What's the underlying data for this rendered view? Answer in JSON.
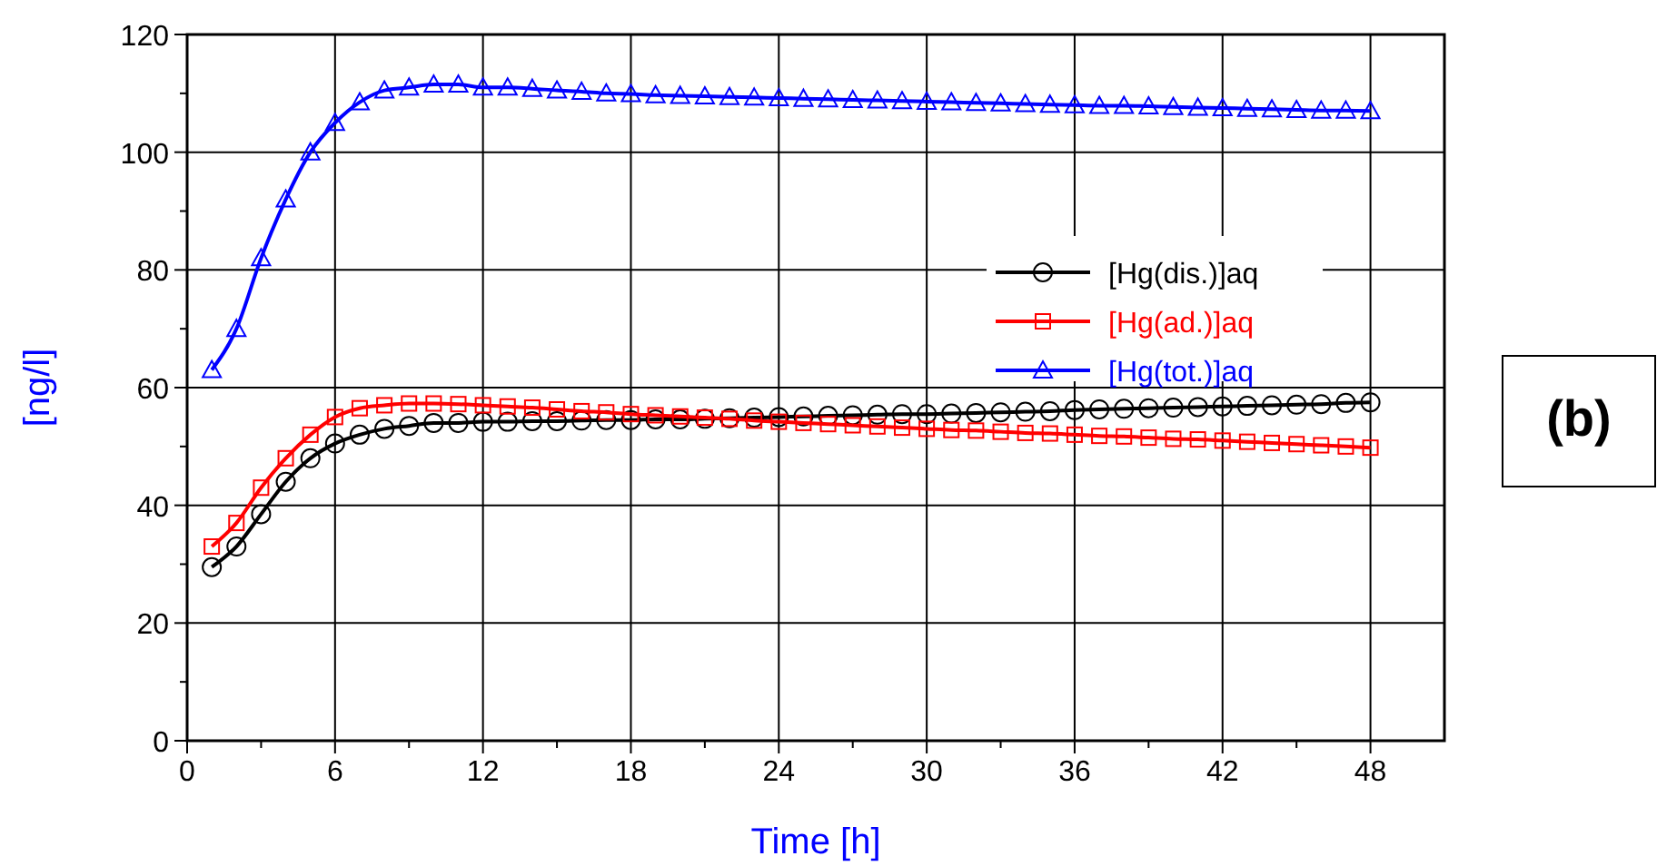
{
  "chart_data": {
    "type": "line",
    "xlabel": "Time [h]",
    "ylabel": "[ng/l]",
    "annotations": [
      "(b)"
    ],
    "x": [
      1,
      2,
      3,
      4,
      5,
      6,
      7,
      8,
      9,
      10,
      11,
      12,
      13,
      14,
      15,
      16,
      17,
      18,
      19,
      20,
      21,
      22,
      23,
      24,
      25,
      26,
      27,
      28,
      29,
      30,
      31,
      32,
      33,
      34,
      35,
      36,
      37,
      38,
      39,
      40,
      41,
      42,
      43,
      44,
      45,
      46,
      47,
      48
    ],
    "xlim": [
      0,
      51
    ],
    "xticks": [
      0,
      {
        "value": 3,
        "label": null
      },
      6,
      {
        "value": 9,
        "label": null
      },
      12,
      {
        "value": 15,
        "label": null
      },
      18,
      {
        "value": 21,
        "label": null
      },
      24,
      {
        "value": 27,
        "label": null
      },
      30,
      {
        "value": 33,
        "label": null
      },
      36,
      {
        "value": 39,
        "label": null
      },
      42,
      {
        "value": 45,
        "label": null
      },
      48
    ],
    "ylim": [
      0,
      120
    ],
    "yticks": [
      0,
      {
        "value": 10,
        "label": null
      },
      20,
      {
        "value": 30,
        "label": null
      },
      40,
      {
        "value": 50,
        "label": null
      },
      60,
      {
        "value": 70,
        "label": null
      },
      80,
      {
        "value": 90,
        "label": null
      },
      100,
      {
        "value": 110,
        "label": null
      },
      120
    ],
    "grid": true,
    "legend": "right",
    "line_style": "solid",
    "series": [
      {
        "name": "[Hg(dis.)]aq",
        "color": "#000000",
        "marker": "circle",
        "values": [
          29.5,
          33,
          38.5,
          44,
          48,
          50.5,
          52,
          53,
          53.5,
          54,
          54,
          54.2,
          54.2,
          54.3,
          54.3,
          54.4,
          54.5,
          54.5,
          54.6,
          54.6,
          54.7,
          54.8,
          54.9,
          55,
          55.1,
          55.2,
          55.3,
          55.4,
          55.5,
          55.5,
          55.6,
          55.7,
          55.8,
          55.9,
          56,
          56.2,
          56.3,
          56.4,
          56.5,
          56.6,
          56.7,
          56.8,
          56.9,
          57,
          57.1,
          57.2,
          57.4,
          57.5
        ]
      },
      {
        "name": "[Hg(ad.)]aq",
        "color": "#ff0000",
        "marker": "square",
        "values": [
          33,
          37,
          43,
          48,
          52,
          55,
          56.5,
          57,
          57.3,
          57.3,
          57.2,
          57,
          56.8,
          56.6,
          56.3,
          56,
          55.8,
          55.5,
          55.3,
          55.1,
          54.9,
          54.7,
          54.4,
          54.2,
          54,
          53.8,
          53.6,
          53.4,
          53.2,
          53,
          52.8,
          52.7,
          52.5,
          52.3,
          52.2,
          52,
          51.8,
          51.7,
          51.5,
          51.3,
          51.2,
          51,
          50.8,
          50.6,
          50.4,
          50.2,
          50,
          49.8
        ]
      },
      {
        "name": "[Hg(tot.)]aq",
        "color": "#0000ff",
        "marker": "triangle",
        "values": [
          63,
          70,
          82,
          92,
          100,
          105,
          108.5,
          110.5,
          111,
          111.5,
          111.5,
          111,
          111,
          110.8,
          110.5,
          110.3,
          110,
          109.9,
          109.7,
          109.6,
          109.5,
          109.4,
          109.3,
          109.2,
          109.1,
          109,
          108.9,
          108.8,
          108.7,
          108.6,
          108.5,
          108.4,
          108.3,
          108.2,
          108.1,
          108,
          107.9,
          107.9,
          107.8,
          107.7,
          107.6,
          107.5,
          107.4,
          107.3,
          107.2,
          107.1,
          107.1,
          107
        ]
      }
    ]
  }
}
